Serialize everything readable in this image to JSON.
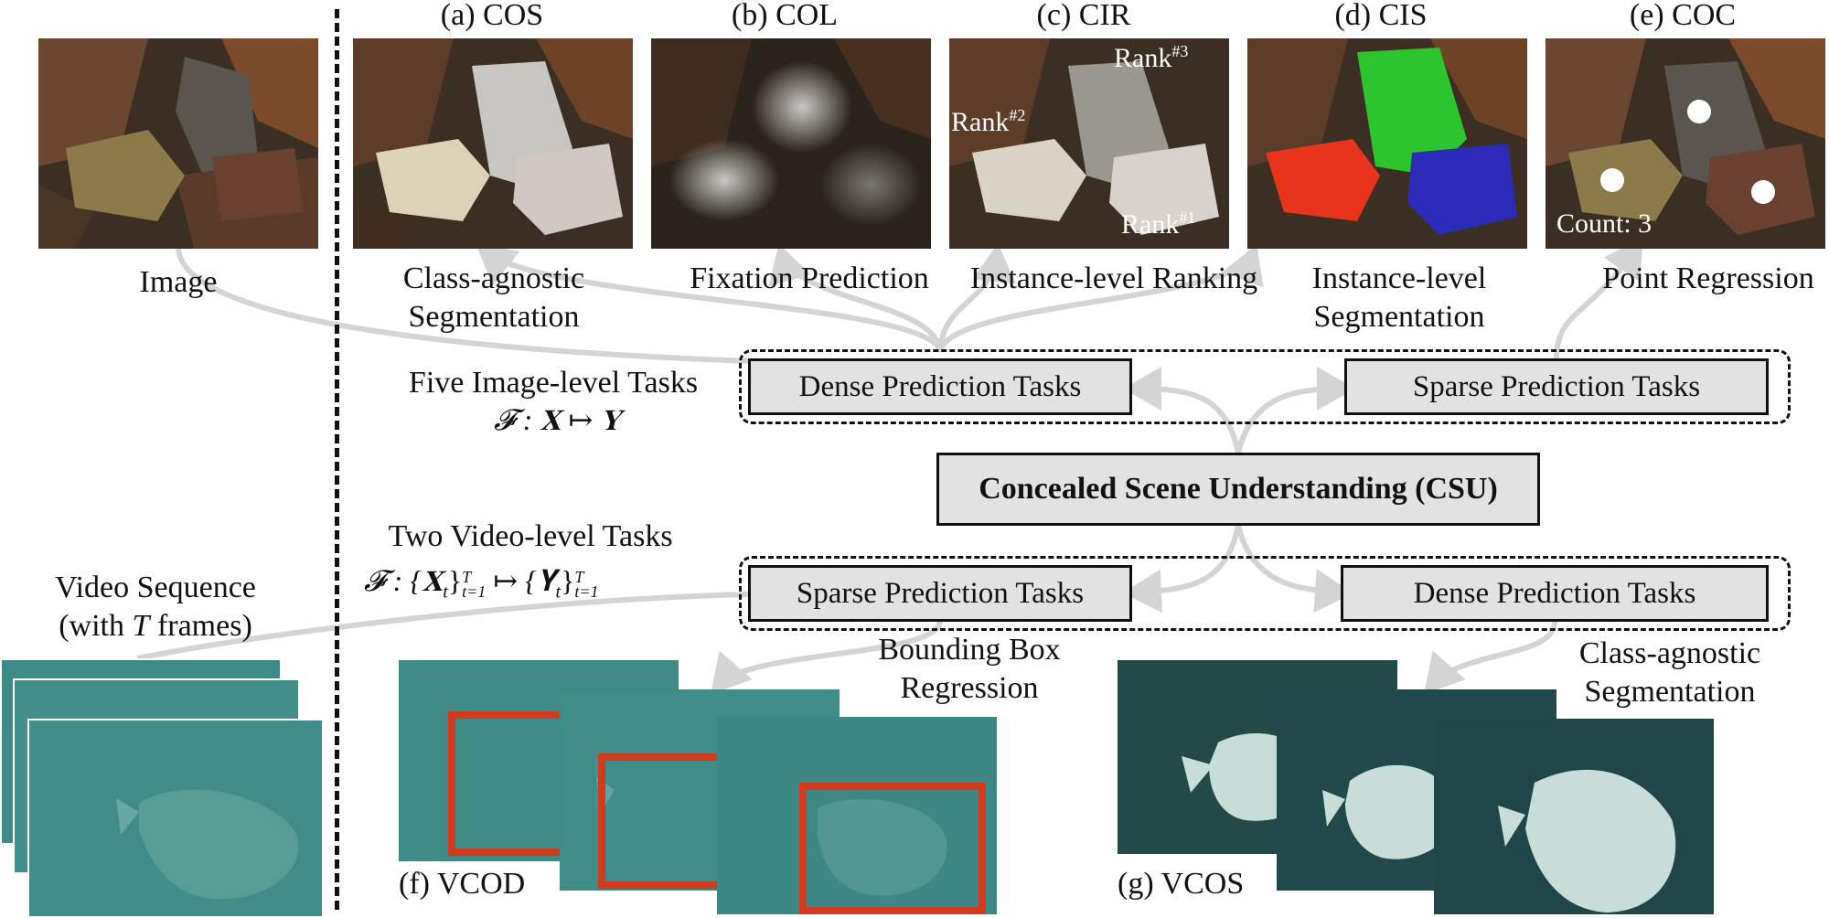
{
  "panels": {
    "image": {
      "caption": "Image"
    },
    "cos": {
      "label": "(a) COS",
      "caption_l1": "Class-agnostic",
      "caption_l2": "Segmentation"
    },
    "col": {
      "label": "(b) COL",
      "caption_l1": "Fixation Prediction"
    },
    "cir": {
      "label": "(c) CIR",
      "caption_l1": "Instance-level Ranking",
      "rank1": "Rank",
      "rank1_sup": "#1",
      "rank2": "Rank",
      "rank2_sup": "#2",
      "rank3": "Rank",
      "rank3_sup": "#3"
    },
    "cis": {
      "label": "(d) CIS",
      "caption_l1": "Instance-level",
      "caption_l2": "Segmentation"
    },
    "coc": {
      "label": "(e) COC",
      "caption_l1": "Point Regression",
      "count_text": "Count: 3"
    }
  },
  "image_tasks": {
    "title": "Five Image-level Tasks",
    "formula": "𝓕 : 𝐗 ↦ 𝐘",
    "dense_box": "Dense Prediction Tasks",
    "sparse_box": "Sparse Prediction Tasks"
  },
  "center_box": "Concealed Scene Understanding (CSU)",
  "video_tasks": {
    "title": "Two Video-level Tasks",
    "formula_left": "𝓕 : {𝐗",
    "formula_mid": "}",
    "formula_right": " ↦ {𝐘",
    "formula_end": "}",
    "sub_t": "t",
    "sup_T": "T",
    "sub_range": "t=1",
    "sparse_box": "Sparse Prediction Tasks",
    "dense_box": "Dense Prediction Tasks"
  },
  "video_input": {
    "caption_l1": "Video Sequence",
    "caption_l2_pre": "(with ",
    "caption_l2_var": "T",
    "caption_l2_post": " frames)"
  },
  "vcod": {
    "label": "(f) VCOD",
    "caption_l1": "Bounding Box",
    "caption_l2": "Regression"
  },
  "vcos": {
    "label": "(g) VCOS",
    "caption_l1": "Class-agnostic",
    "caption_l2": "Segmentation"
  },
  "colors": {
    "arrow": "#d4d4d4",
    "box_fill": "#e2e2e2",
    "bbox_red": "#d23a1e",
    "inst_red": "#e8341c",
    "inst_green": "#2ec42e",
    "inst_blue": "#2b2bb8",
    "video_bg": "#3e8a86",
    "leaf_bg": "#3a2f22"
  }
}
